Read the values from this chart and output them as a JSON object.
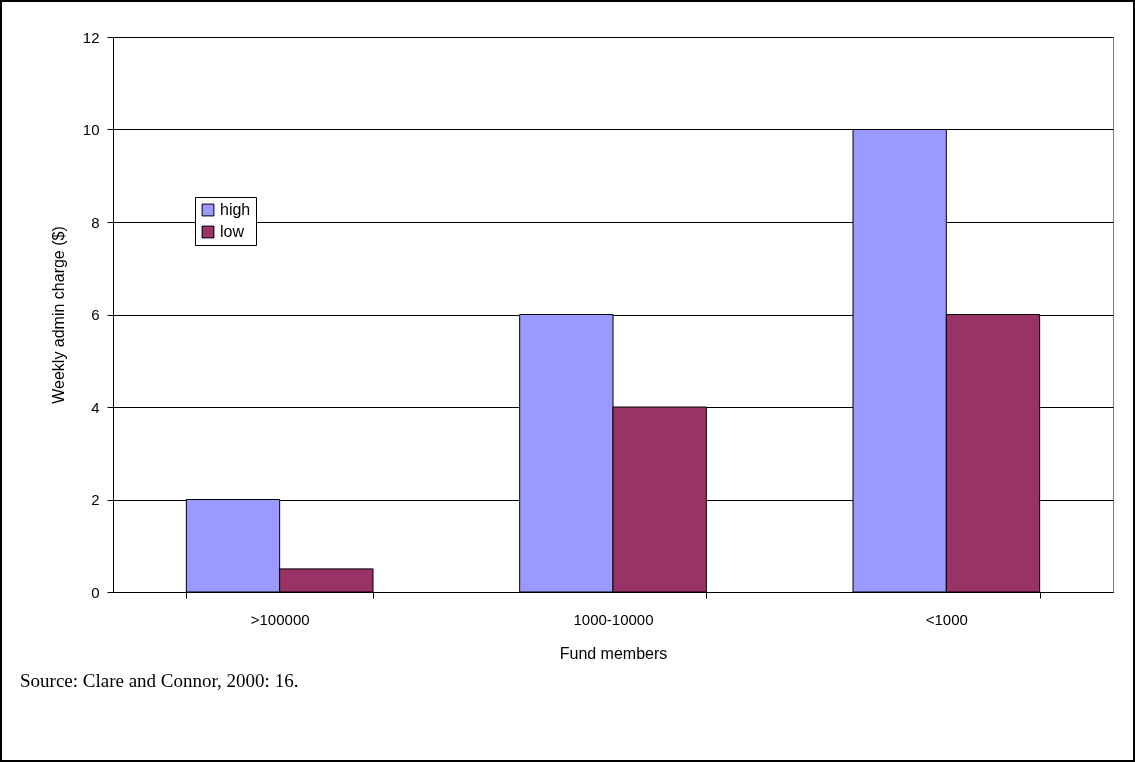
{
  "chart_data": {
    "type": "bar",
    "xlabel": "Fund members",
    "ylabel": "Weekly admin charge ($)",
    "categories": [
      ">100000",
      "1000-10000",
      "<1000"
    ],
    "series": [
      {
        "name": "high",
        "color": "#9999ff",
        "values": [
          2,
          6,
          10
        ]
      },
      {
        "name": "low",
        "color": "#993366",
        "values": [
          0.5,
          4,
          6
        ]
      }
    ],
    "ylim": [
      0,
      12
    ],
    "yticks": [
      0,
      2,
      4,
      6,
      8,
      10,
      12
    ],
    "grid": "y",
    "legend": "top left",
    "annotations": [
      "Source: Clare and Connor, 2000: 16."
    ]
  }
}
